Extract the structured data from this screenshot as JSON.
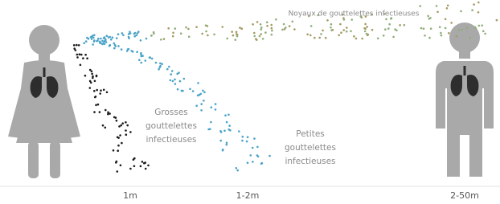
{
  "labels": {
    "airborne": "Noyaux de gouttelettes infectieuses",
    "large": {
      "lines": [
        "Grosses",
        "gouttelettes",
        "infectieuses"
      ]
    },
    "small": {
      "lines": [
        "Petites",
        "gouttelettes",
        "infectieuses"
      ]
    }
  },
  "distances": [
    "1m",
    "1-2m",
    "2-50m"
  ]
}
